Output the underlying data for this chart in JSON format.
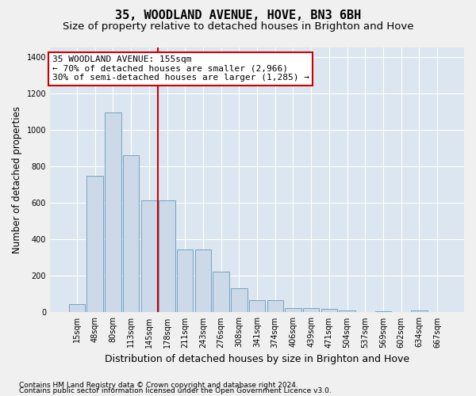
{
  "title": "35, WOODLAND AVENUE, HOVE, BN3 6BH",
  "subtitle": "Size of property relative to detached houses in Brighton and Hove",
  "xlabel": "Distribution of detached houses by size in Brighton and Hove",
  "ylabel": "Number of detached properties",
  "footnote1": "Contains HM Land Registry data © Crown copyright and database right 2024.",
  "footnote2": "Contains public sector information licensed under the Open Government Licence v3.0.",
  "annotation_line1": "35 WOODLAND AVENUE: 155sqm",
  "annotation_line2": "← 70% of detached houses are smaller (2,966)",
  "annotation_line3": "30% of semi-detached houses are larger (1,285) →",
  "bar_labels": [
    "15sqm",
    "48sqm",
    "80sqm",
    "113sqm",
    "145sqm",
    "178sqm",
    "211sqm",
    "243sqm",
    "276sqm",
    "308sqm",
    "341sqm",
    "374sqm",
    "406sqm",
    "439sqm",
    "471sqm",
    "504sqm",
    "537sqm",
    "569sqm",
    "602sqm",
    "634sqm",
    "667sqm"
  ],
  "bar_heights": [
    47,
    748,
    1095,
    860,
    615,
    615,
    345,
    345,
    225,
    130,
    65,
    65,
    25,
    25,
    20,
    12,
    0,
    8,
    0,
    10,
    0
  ],
  "bar_color": "#ccd9e8",
  "bar_edge_color": "#6699bb",
  "vline_position": 4.5,
  "vline_color": "#cc0000",
  "annotation_box_edgecolor": "#cc0000",
  "ylim": [
    0,
    1450
  ],
  "yticks": [
    0,
    200,
    400,
    600,
    800,
    1000,
    1200,
    1400
  ],
  "plot_bg_color": "#dce6f0",
  "fig_bg_color": "#f0f0f0",
  "grid_color": "#ffffff",
  "title_fontsize": 11,
  "subtitle_fontsize": 9.5,
  "ylabel_fontsize": 8.5,
  "xlabel_fontsize": 9,
  "tick_fontsize": 7,
  "annotation_fontsize": 8,
  "footnote_fontsize": 6.5
}
